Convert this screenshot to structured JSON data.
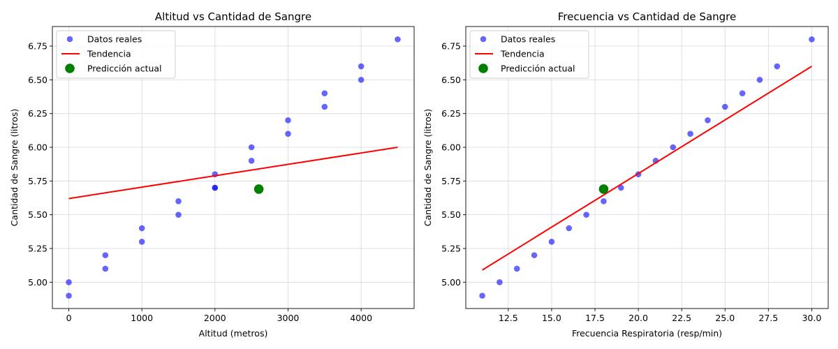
{
  "colors": {
    "points": "#0000ff",
    "trend": "#ff0000",
    "prediction": "#008000",
    "grid": "#d9d9d9",
    "axes": "#000000"
  },
  "chart_data": [
    {
      "type": "scatter",
      "title": "Altitud vs Cantidad de Sangre",
      "xlabel": "Altitud (metros)",
      "ylabel": "Cantidad de Sangre (litros)",
      "xlim": [
        -225,
        4725
      ],
      "ylim": [
        4.805,
        6.895
      ],
      "xticks": [
        0,
        1000,
        2000,
        3000,
        4000
      ],
      "xtick_labels": [
        "0",
        "1000",
        "2000",
        "3000",
        "4000"
      ],
      "yticks": [
        5.0,
        5.25,
        5.5,
        5.75,
        6.0,
        6.25,
        6.5,
        6.75
      ],
      "ytick_labels": [
        "5.00",
        "5.25",
        "5.50",
        "5.75",
        "6.00",
        "6.25",
        "6.50",
        "6.75"
      ],
      "grid": true,
      "legend_position": "upper-left",
      "legend": [
        "Datos reales",
        "Tendencia",
        "Predicción actual"
      ],
      "series": [
        {
          "name": "Datos reales",
          "kind": "scatter",
          "x": [
            0,
            0,
            500,
            500,
            1000,
            1000,
            1500,
            1500,
            2000,
            2000,
            2000,
            2500,
            2500,
            3000,
            3000,
            3500,
            3500,
            4000,
            4000,
            4500
          ],
          "y": [
            4.9,
            5.0,
            5.1,
            5.2,
            5.3,
            5.4,
            5.5,
            5.6,
            5.7,
            5.7,
            5.8,
            5.9,
            6.0,
            6.1,
            6.2,
            6.3,
            6.4,
            6.5,
            6.6,
            6.8
          ]
        },
        {
          "name": "Tendencia",
          "kind": "line",
          "x": [
            0,
            4500
          ],
          "y": [
            5.62,
            6.0
          ]
        },
        {
          "name": "Predicción actual",
          "kind": "point",
          "x": [
            2600
          ],
          "y": [
            5.69
          ]
        }
      ]
    },
    {
      "type": "scatter",
      "title": "Frecuencia vs Cantidad de Sangre",
      "xlabel": "Frecuencia Respiratoria (resp/min)",
      "ylabel": "Cantidad de Sangre (litros)",
      "xlim": [
        10.05,
        30.95
      ],
      "ylim": [
        4.805,
        6.895
      ],
      "xticks": [
        12.5,
        15.0,
        17.5,
        20.0,
        22.5,
        25.0,
        27.5,
        30.0
      ],
      "xtick_labels": [
        "12.5",
        "15.0",
        "17.5",
        "20.0",
        "22.5",
        "25.0",
        "27.5",
        "30.0"
      ],
      "yticks": [
        5.0,
        5.25,
        5.5,
        5.75,
        6.0,
        6.25,
        6.5,
        6.75
      ],
      "ytick_labels": [
        "5.00",
        "5.25",
        "5.50",
        "5.75",
        "6.00",
        "6.25",
        "6.50",
        "6.75"
      ],
      "grid": true,
      "legend_position": "upper-left",
      "legend": [
        "Datos reales",
        "Tendencia",
        "Predicción actual"
      ],
      "series": [
        {
          "name": "Datos reales",
          "kind": "scatter",
          "x": [
            11,
            12,
            13,
            14,
            15,
            16,
            17,
            18,
            19,
            20,
            21,
            22,
            23,
            24,
            25,
            26,
            27,
            28,
            30
          ],
          "y": [
            4.9,
            5.0,
            5.1,
            5.2,
            5.3,
            5.4,
            5.5,
            5.6,
            5.7,
            5.8,
            5.9,
            6.0,
            6.1,
            6.2,
            6.3,
            6.4,
            6.5,
            6.6,
            6.8
          ]
        },
        {
          "name": "Tendencia",
          "kind": "line",
          "x": [
            11,
            30
          ],
          "y": [
            5.09,
            6.6
          ]
        },
        {
          "name": "Predicción actual",
          "kind": "point",
          "x": [
            18
          ],
          "y": [
            5.69
          ]
        }
      ]
    }
  ]
}
